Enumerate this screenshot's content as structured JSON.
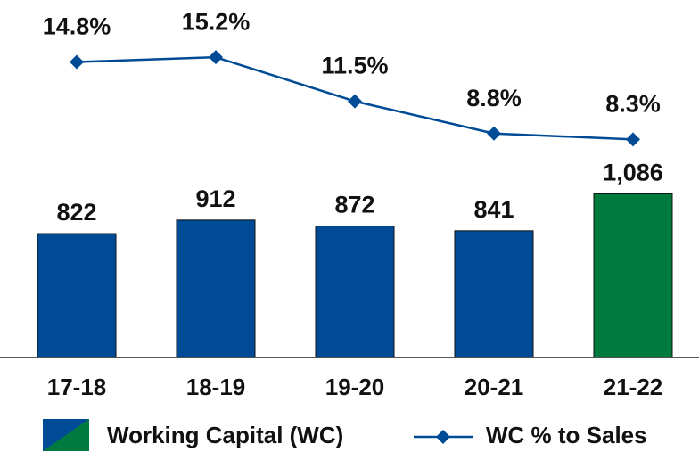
{
  "chart_data": {
    "type": "bar",
    "categories": [
      "17-18",
      "18-19",
      "19-20",
      "20-21",
      "21-22"
    ],
    "series": [
      {
        "name": "Working Capital (WC)",
        "type": "bar",
        "colors": [
          "#004b96",
          "#004b96",
          "#004b96",
          "#004b96",
          "#007a3d"
        ],
        "values": [
          822,
          912,
          872,
          841,
          1086
        ],
        "value_labels": [
          "822",
          "912",
          "872",
          "841",
          "1,086"
        ]
      },
      {
        "name": "WC % to Sales",
        "type": "line",
        "axis": "y2",
        "color": "#004b96",
        "values": [
          14.8,
          15.2,
          11.5,
          8.8,
          8.3
        ],
        "value_labels": [
          "14.8%",
          "15.2%",
          "11.5%",
          "8.8%",
          "8.3%"
        ]
      }
    ],
    "ylim": [
      0,
      2372
    ],
    "y2lim": [
      -10,
      20
    ]
  }
}
